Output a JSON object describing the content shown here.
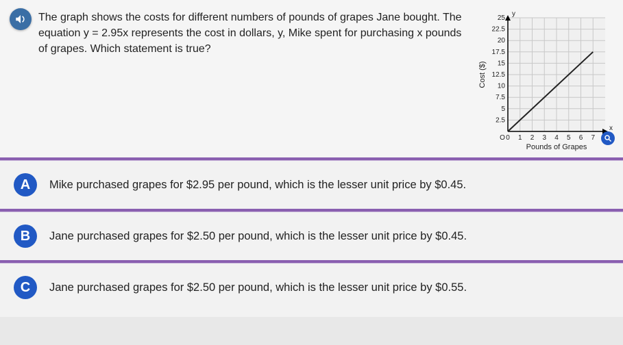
{
  "question": {
    "prompt": "The graph shows the costs for different numbers of pounds of grapes Jane bought. The equation y = 2.95x represents the cost in dollars, y, Mike spent for purchasing x pounds of grapes. Which statement is true?"
  },
  "chart": {
    "type": "line",
    "y_axis_label": "Cost ($)",
    "x_axis_label": "Pounds of Grapes",
    "top_label": "y",
    "right_label": "x",
    "x_ticks": [
      0,
      1,
      2,
      3,
      4,
      5,
      6,
      7
    ],
    "y_ticks": [
      2.5,
      5,
      7.5,
      10,
      12.5,
      15,
      17.5,
      20,
      22.5,
      25
    ],
    "xlim": [
      0,
      8
    ],
    "ylim": [
      0,
      25
    ],
    "line_points": [
      [
        0,
        0
      ],
      [
        7,
        17.5
      ]
    ],
    "line_color": "#222222",
    "line_width": 2,
    "grid_color": "#c8c8c8",
    "axis_color": "#000000",
    "background_color": "#f0f0f0",
    "tick_font_size": 10,
    "label_font_size": 11,
    "arrowheads": true
  },
  "answers": [
    {
      "letter": "A",
      "text": "Mike purchased grapes for $2.95 per pound, which is the lesser unit price by $0.45."
    },
    {
      "letter": "B",
      "text": "Jane purchased grapes for $2.50 per pound, which is the lesser unit price by $0.45."
    },
    {
      "letter": "C",
      "text": "Jane purchased grapes for $2.50 per pound, which is the lesser unit price by $0.55."
    }
  ],
  "colors": {
    "badge_bg": "#2159c4",
    "divider": "#8a5fb0",
    "audio_bg": "#3a6ea5"
  }
}
